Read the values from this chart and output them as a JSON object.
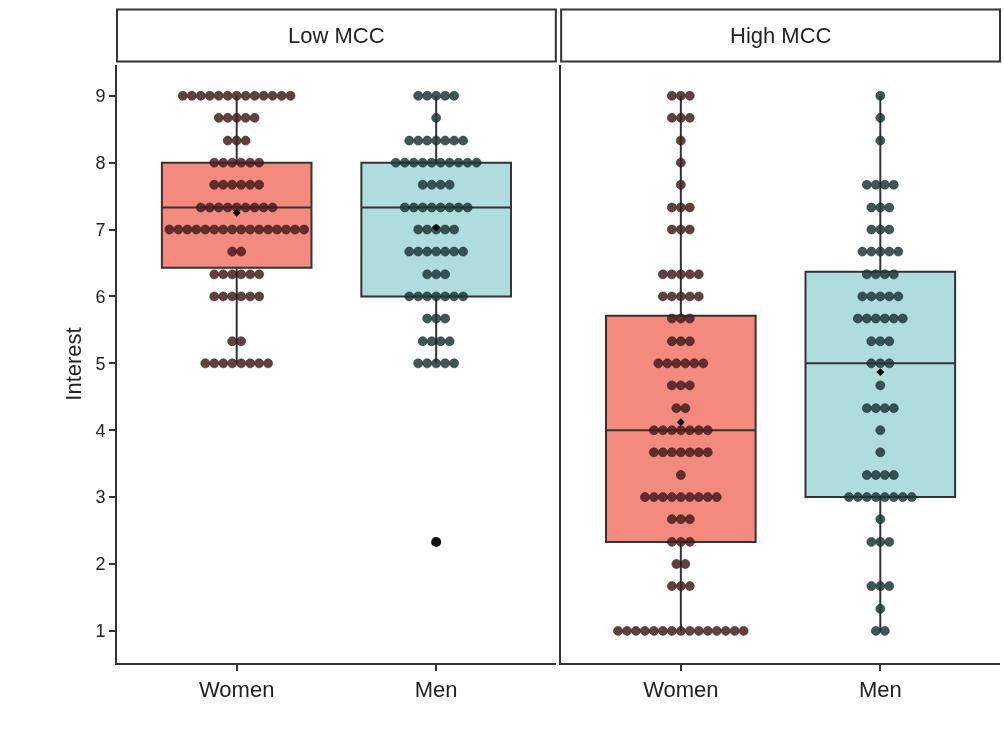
{
  "chart_data": [
    {
      "type": "box",
      "title": "Low MCC",
      "ylabel": "Interest",
      "categories": [
        "Women",
        "Men"
      ],
      "colors": [
        "#f4897e",
        "#afdcdc"
      ],
      "boxes": [
        {
          "low": 5,
          "q1": 6.43,
          "median": 7.33,
          "q3": 8,
          "high": 9,
          "mean": 7.25
        },
        {
          "low": 5,
          "q1": 6,
          "median": 7.33,
          "q3": 8,
          "high": 9,
          "mean": 7.03,
          "outliers": [
            2.33
          ]
        }
      ],
      "ylim": [
        0.52,
        9.46
      ],
      "yticks": [
        1,
        2,
        3,
        4,
        5,
        6,
        7,
        8,
        9
      ],
      "series": [
        {
          "type": "scatter",
          "color": "#4a1e1e",
          "x": [
            "Women",
            "Women",
            "Women",
            "Women",
            "Women",
            "Women",
            "Women",
            "Women",
            "Women",
            "Women",
            "Women",
            "Women",
            "Women",
            "Women",
            "Women",
            "Women",
            "Women",
            "Women",
            "Women",
            "Women",
            "Women",
            "Women",
            "Women",
            "Women",
            "Women",
            "Women",
            "Women",
            "Women",
            "Women",
            "Women",
            "Women",
            "Women",
            "Women",
            "Women",
            "Women",
            "Women",
            "Women",
            "Women",
            "Women",
            "Women",
            "Women",
            "Women",
            "Women",
            "Women",
            "Women",
            "Women",
            "Women",
            "Women",
            "Women",
            "Women",
            "Women",
            "Women",
            "Women",
            "Women",
            "Women",
            "Women",
            "Women",
            "Women",
            "Women",
            "Women",
            "Women",
            "Women",
            "Women",
            "Women",
            "Women",
            "Women",
            "Women",
            "Women",
            "Women",
            "Women",
            "Women",
            "Women",
            "Women",
            "Women",
            "Women",
            "Women",
            "Women",
            "Women",
            "Women",
            "Women",
            "Women",
            "Women"
          ],
          "values": [
            9,
            9,
            9,
            9,
            9,
            9,
            9,
            9,
            9,
            9,
            9,
            9,
            9,
            8.67,
            8.67,
            8.67,
            8.67,
            8.67,
            8.33,
            8.33,
            8.33,
            8,
            8,
            8,
            8,
            8,
            8,
            7.67,
            7.67,
            7.67,
            7.67,
            7.67,
            7.67,
            7.33,
            7.33,
            7.33,
            7.33,
            7.33,
            7.33,
            7.33,
            7.33,
            7.33,
            7,
            7,
            7,
            7,
            7,
            7,
            7,
            7,
            7,
            7,
            7,
            7,
            7,
            7,
            7,
            7,
            6.67,
            6.67,
            6.33,
            6.33,
            6.33,
            6.33,
            6.33,
            6.33,
            6,
            6,
            6,
            6,
            6,
            6,
            5.33,
            5.33,
            5,
            5,
            5,
            5,
            5,
            5,
            5,
            5
          ]
        },
        {
          "type": "scatter",
          "color": "#1e3a3a",
          "x": [
            "Men",
            "Men",
            "Men",
            "Men",
            "Men",
            "Men",
            "Men",
            "Men",
            "Men",
            "Men",
            "Men",
            "Men",
            "Men",
            "Men",
            "Men",
            "Men",
            "Men",
            "Men",
            "Men",
            "Men",
            "Men",
            "Men",
            "Men",
            "Men",
            "Men",
            "Men",
            "Men",
            "Men",
            "Men",
            "Men",
            "Men",
            "Men",
            "Men",
            "Men",
            "Men",
            "Men",
            "Men",
            "Men",
            "Men",
            "Men",
            "Men",
            "Men",
            "Men",
            "Men",
            "Men",
            "Men",
            "Men",
            "Men",
            "Men",
            "Men",
            "Men",
            "Men",
            "Men",
            "Men",
            "Men",
            "Men",
            "Men",
            "Men",
            "Men",
            "Men",
            "Men",
            "Men",
            "Men",
            "Men",
            "Men",
            "Men",
            "Men",
            "Men",
            "Men"
          ],
          "values": [
            9,
            9,
            9,
            9,
            9,
            8.67,
            8.33,
            8.33,
            8.33,
            8.33,
            8.33,
            8.33,
            8.33,
            8,
            8,
            8,
            8,
            8,
            8,
            8,
            8,
            8,
            8,
            7.67,
            7.67,
            7.67,
            7.67,
            7.33,
            7.33,
            7.33,
            7.33,
            7.33,
            7.33,
            7.33,
            7.33,
            7,
            7,
            7,
            7,
            7,
            6.67,
            6.67,
            6.67,
            6.67,
            6.67,
            6.67,
            6.67,
            6.33,
            6.33,
            6.33,
            6,
            6,
            6,
            6,
            6,
            6,
            6,
            5.67,
            5.67,
            5.67,
            5.33,
            5.33,
            5.33,
            5.33,
            5,
            5,
            5,
            5,
            5
          ]
        }
      ]
    },
    {
      "type": "box",
      "title": "High MCC",
      "categories": [
        "Women",
        "Men"
      ],
      "colors": [
        "#f4897e",
        "#afdcdc"
      ],
      "boxes": [
        {
          "low": 1,
          "q1": 2.33,
          "median": 4,
          "q3": 5.71,
          "high": 9,
          "mean": 4.12
        },
        {
          "low": 1,
          "q1": 3,
          "median": 5,
          "q3": 6.37,
          "high": 9,
          "mean": 4.87
        }
      ],
      "ylim": [
        0.52,
        9.46
      ],
      "yticks": [
        1,
        2,
        3,
        4,
        5,
        6,
        7,
        8,
        9
      ],
      "tick_labels": "x",
      "series": [
        {
          "type": "scatter",
          "color": "#4a1e1e",
          "x": [
            "Women",
            "Women",
            "Women",
            "Women",
            "Women",
            "Women",
            "Women",
            "Women",
            "Women",
            "Women",
            "Women",
            "Women",
            "Women",
            "Women",
            "Women",
            "Women",
            "Women",
            "Women",
            "Women",
            "Women",
            "Women",
            "Women",
            "Women",
            "Women",
            "Women",
            "Women",
            "Women",
            "Women",
            "Women",
            "Women",
            "Women",
            "Women",
            "Women",
            "Women",
            "Women",
            "Women",
            "Women",
            "Women",
            "Women",
            "Women",
            "Women",
            "Women",
            "Women",
            "Women",
            "Women",
            "Women",
            "Women",
            "Women",
            "Women",
            "Women",
            "Women",
            "Women",
            "Women",
            "Women",
            "Women",
            "Women",
            "Women",
            "Women",
            "Women",
            "Women",
            "Women",
            "Women",
            "Women",
            "Women",
            "Women",
            "Women",
            "Women",
            "Women",
            "Women",
            "Women",
            "Women",
            "Women",
            "Women",
            "Women",
            "Women",
            "Women",
            "Women",
            "Women",
            "Women",
            "Women",
            "Women",
            "Women",
            "Women",
            "Women",
            "Women",
            "Women",
            "Women",
            "Women",
            "Women",
            "Women",
            "Women",
            "Women"
          ],
          "values": [
            9,
            9,
            9,
            8.67,
            8.67,
            8.67,
            8.33,
            8,
            7.67,
            7.33,
            7.33,
            7.33,
            7,
            7,
            7,
            6.33,
            6.33,
            6.33,
            6.33,
            6.33,
            6,
            6,
            6,
            6,
            6,
            5.67,
            5.67,
            5.67,
            5.33,
            5.33,
            5.33,
            5,
            5,
            5,
            5,
            5,
            5,
            4.67,
            4.67,
            4.67,
            4.33,
            4.33,
            4,
            4,
            4,
            4,
            4,
            4,
            4,
            3.67,
            3.67,
            3.67,
            3.67,
            3.67,
            3.67,
            3.67,
            3.33,
            3,
            3,
            3,
            3,
            3,
            3,
            3,
            3,
            3,
            2.67,
            2.67,
            2.67,
            2.33,
            2.33,
            2.33,
            2,
            2,
            1.67,
            1.67,
            1.67,
            1,
            1,
            1,
            1,
            1,
            1,
            1,
            1,
            1,
            1,
            1,
            1,
            1,
            1,
            1
          ]
        },
        {
          "type": "scatter",
          "color": "#1e3a3a",
          "x": [
            "Men",
            "Men",
            "Men",
            "Men",
            "Men",
            "Men",
            "Men",
            "Men",
            "Men",
            "Men",
            "Men",
            "Men",
            "Men",
            "Men",
            "Men",
            "Men",
            "Men",
            "Men",
            "Men",
            "Men",
            "Men",
            "Men",
            "Men",
            "Men",
            "Men",
            "Men",
            "Men",
            "Men",
            "Men",
            "Men",
            "Men",
            "Men",
            "Men",
            "Men",
            "Men",
            "Men",
            "Men",
            "Men",
            "Men",
            "Men",
            "Men",
            "Men",
            "Men",
            "Men",
            "Men",
            "Men",
            "Men",
            "Men",
            "Men",
            "Men",
            "Men",
            "Men",
            "Men",
            "Men",
            "Men",
            "Men",
            "Men",
            "Men",
            "Men",
            "Men",
            "Men",
            "Men",
            "Men",
            "Men",
            "Men",
            "Men",
            "Men",
            "Men"
          ],
          "values": [
            9,
            8.67,
            8.33,
            7.67,
            7.67,
            7.67,
            7.67,
            7.33,
            7.33,
            7.33,
            7,
            7,
            7,
            6.67,
            6.67,
            6.67,
            6.67,
            6.67,
            6.33,
            6.33,
            6.33,
            6.33,
            6,
            6,
            6,
            6,
            6,
            5.67,
            5.67,
            5.67,
            5.67,
            5.67,
            5.67,
            5.33,
            5.33,
            5.33,
            5,
            5,
            5,
            4.67,
            4.33,
            4.33,
            4.33,
            4.33,
            4,
            3.67,
            3.33,
            3.33,
            3.33,
            3.33,
            3,
            3,
            3,
            3,
            3,
            3,
            3,
            3,
            2.67,
            2.33,
            2.33,
            2.33,
            1.67,
            1.67,
            1.67,
            1.33,
            1,
            1
          ]
        }
      ]
    }
  ]
}
